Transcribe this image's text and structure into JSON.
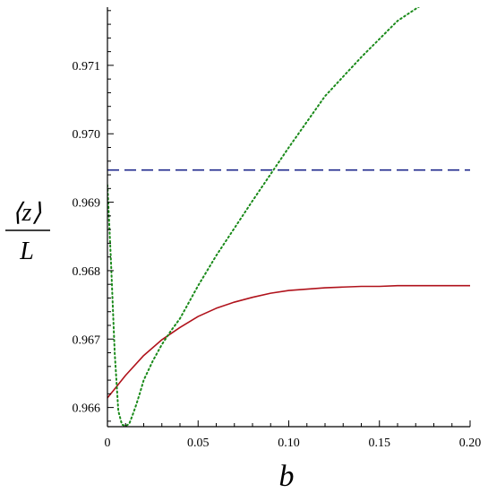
{
  "chart_data": {
    "type": "line",
    "xlabel": "b",
    "ylabel": {
      "numerator": "⟨z⟩",
      "denominator": "L"
    },
    "xlim": [
      0,
      0.2
    ],
    "ylim": [
      0.96572,
      0.97185
    ],
    "x_ticks": [
      0,
      0.05,
      0.1,
      0.15,
      0.2
    ],
    "x_tick_labels": [
      "0",
      "0.05",
      "0.10",
      "0.15",
      "0.20"
    ],
    "y_ticks": [
      0.966,
      0.967,
      0.968,
      0.969,
      0.97,
      0.971
    ],
    "y_tick_labels": [
      "0.966",
      "0.967",
      "0.968",
      "0.969",
      "0.970",
      "0.971"
    ],
    "grid": false,
    "series": [
      {
        "color": "#b0121b",
        "style": "solid",
        "x": [
          0,
          0.01,
          0.02,
          0.03,
          0.04,
          0.05,
          0.06,
          0.07,
          0.08,
          0.09,
          0.1,
          0.11,
          0.12,
          0.13,
          0.14,
          0.15,
          0.16,
          0.17,
          0.18,
          0.19,
          0.2
        ],
        "y": [
          0.96614,
          0.96647,
          0.96676,
          0.96699,
          0.96717,
          0.96733,
          0.96745,
          0.96754,
          0.96761,
          0.96767,
          0.96771,
          0.96773,
          0.96775,
          0.96776,
          0.96777,
          0.96777,
          0.96778,
          0.96778,
          0.96778,
          0.96778,
          0.96778
        ]
      },
      {
        "color": "#1f2a8c",
        "style": "dashed",
        "x": [
          0,
          0.2
        ],
        "y": [
          0.96947,
          0.96947
        ]
      },
      {
        "color": "#1a8a1a",
        "style": "dotted",
        "x": [
          0,
          0.002,
          0.004,
          0.006,
          0.008,
          0.01,
          0.012,
          0.014,
          0.016,
          0.018,
          0.02,
          0.025,
          0.03,
          0.035,
          0.04,
          0.05,
          0.06,
          0.08,
          0.1,
          0.12,
          0.14,
          0.16,
          0.18,
          0.2
        ],
        "y": [
          0.96925,
          0.9681,
          0.9668,
          0.96595,
          0.96575,
          0.96573,
          0.96576,
          0.9659,
          0.96605,
          0.96622,
          0.9664,
          0.96668,
          0.96692,
          0.96712,
          0.9673,
          0.96778,
          0.96822,
          0.96902,
          0.9698,
          0.97055,
          0.97112,
          0.97165,
          0.972,
          0.9724
        ]
      }
    ]
  }
}
